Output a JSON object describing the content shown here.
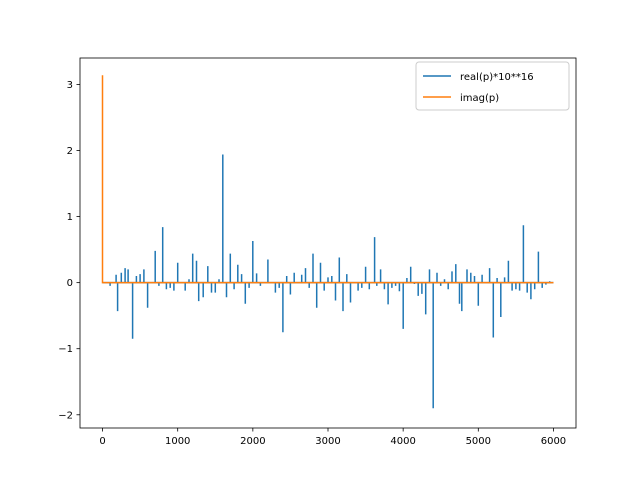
{
  "chart_data": {
    "type": "line",
    "title": "",
    "xlabel": "",
    "ylabel": "",
    "xlim": [
      -300,
      6300
    ],
    "ylim": [
      -2.2,
      3.4
    ],
    "x_ticks": [
      0,
      1000,
      2000,
      3000,
      4000,
      5000,
      6000
    ],
    "x_tick_labels": [
      "0",
      "1000",
      "2000",
      "3000",
      "4000",
      "5000",
      "6000"
    ],
    "y_ticks": [
      -2,
      -1,
      0,
      1,
      2,
      3
    ],
    "y_tick_labels": [
      "−2",
      "−1",
      "0",
      "1",
      "2",
      "3"
    ],
    "grid": false,
    "legend": "top-right",
    "series": [
      {
        "name": "real(p)*10**16",
        "color": "#1f77b4",
        "spikes": [
          [
            100,
            -0.05
          ],
          [
            180,
            0.12
          ],
          [
            200,
            -0.43
          ],
          [
            250,
            0.15
          ],
          [
            300,
            0.22
          ],
          [
            340,
            0.2
          ],
          [
            400,
            -0.85
          ],
          [
            450,
            0.1
          ],
          [
            500,
            0.13
          ],
          [
            550,
            0.2
          ],
          [
            600,
            -0.38
          ],
          [
            700,
            0.48
          ],
          [
            750,
            -0.05
          ],
          [
            800,
            0.84
          ],
          [
            850,
            -0.1
          ],
          [
            900,
            -0.08
          ],
          [
            950,
            -0.12
          ],
          [
            1000,
            0.3
          ],
          [
            1100,
            -0.12
          ],
          [
            1150,
            0.05
          ],
          [
            1200,
            0.44
          ],
          [
            1250,
            0.33
          ],
          [
            1280,
            -0.28
          ],
          [
            1340,
            -0.22
          ],
          [
            1400,
            0.25
          ],
          [
            1450,
            -0.15
          ],
          [
            1500,
            -0.15
          ],
          [
            1550,
            0.05
          ],
          [
            1600,
            1.94
          ],
          [
            1650,
            -0.22
          ],
          [
            1700,
            0.44
          ],
          [
            1750,
            -0.1
          ],
          [
            1800,
            0.27
          ],
          [
            1850,
            0.13
          ],
          [
            1900,
            -0.32
          ],
          [
            1950,
            -0.08
          ],
          [
            2000,
            0.63
          ],
          [
            2050,
            0.14
          ],
          [
            2100,
            -0.05
          ],
          [
            2200,
            0.35
          ],
          [
            2300,
            -0.15
          ],
          [
            2350,
            -0.08
          ],
          [
            2400,
            -0.75
          ],
          [
            2450,
            0.1
          ],
          [
            2500,
            -0.18
          ],
          [
            2550,
            0.15
          ],
          [
            2650,
            0.12
          ],
          [
            2700,
            0.22
          ],
          [
            2750,
            -0.08
          ],
          [
            2800,
            0.44
          ],
          [
            2850,
            -0.38
          ],
          [
            2900,
            0.3
          ],
          [
            2950,
            -0.12
          ],
          [
            3000,
            0.08
          ],
          [
            3050,
            0.1
          ],
          [
            3100,
            -0.27
          ],
          [
            3150,
            0.38
          ],
          [
            3200,
            -0.43
          ],
          [
            3250,
            0.13
          ],
          [
            3300,
            -0.3
          ],
          [
            3400,
            -0.12
          ],
          [
            3450,
            -0.08
          ],
          [
            3500,
            0.24
          ],
          [
            3550,
            -0.1
          ],
          [
            3620,
            0.69
          ],
          [
            3650,
            -0.05
          ],
          [
            3700,
            0.2
          ],
          [
            3750,
            -0.1
          ],
          [
            3800,
            -0.33
          ],
          [
            3850,
            -0.08
          ],
          [
            3900,
            -0.05
          ],
          [
            3950,
            -0.13
          ],
          [
            4000,
            -0.7
          ],
          [
            4050,
            0.07
          ],
          [
            4100,
            0.24
          ],
          [
            4150,
            -0.02
          ],
          [
            4200,
            -0.2
          ],
          [
            4250,
            -0.17
          ],
          [
            4300,
            -0.48
          ],
          [
            4350,
            0.2
          ],
          [
            4400,
            -1.9
          ],
          [
            4450,
            0.15
          ],
          [
            4500,
            -0.05
          ],
          [
            4550,
            0.05
          ],
          [
            4600,
            -0.1
          ],
          [
            4650,
            0.17
          ],
          [
            4700,
            0.28
          ],
          [
            4750,
            -0.32
          ],
          [
            4780,
            -0.43
          ],
          [
            4850,
            0.2
          ],
          [
            4900,
            0.15
          ],
          [
            4950,
            0.1
          ],
          [
            5000,
            -0.35
          ],
          [
            5050,
            0.12
          ],
          [
            5150,
            0.22
          ],
          [
            5200,
            -0.83
          ],
          [
            5250,
            0.07
          ],
          [
            5300,
            -0.52
          ],
          [
            5350,
            0.08
          ],
          [
            5400,
            0.33
          ],
          [
            5450,
            -0.12
          ],
          [
            5500,
            -0.1
          ],
          [
            5550,
            -0.12
          ],
          [
            5600,
            0.87
          ],
          [
            5650,
            -0.15
          ],
          [
            5700,
            -0.25
          ],
          [
            5750,
            -0.1
          ],
          [
            5800,
            0.47
          ],
          [
            5850,
            -0.08
          ],
          [
            5900,
            -0.03
          ],
          [
            5950,
            0.02
          ]
        ]
      },
      {
        "name": "imag(p)",
        "color": "#ff7f0e",
        "x_start": 0,
        "x_end": 6000,
        "peak_x": 0,
        "peak_y": 3.14,
        "baseline": 0.0
      }
    ]
  },
  "frame_color": "#000000"
}
